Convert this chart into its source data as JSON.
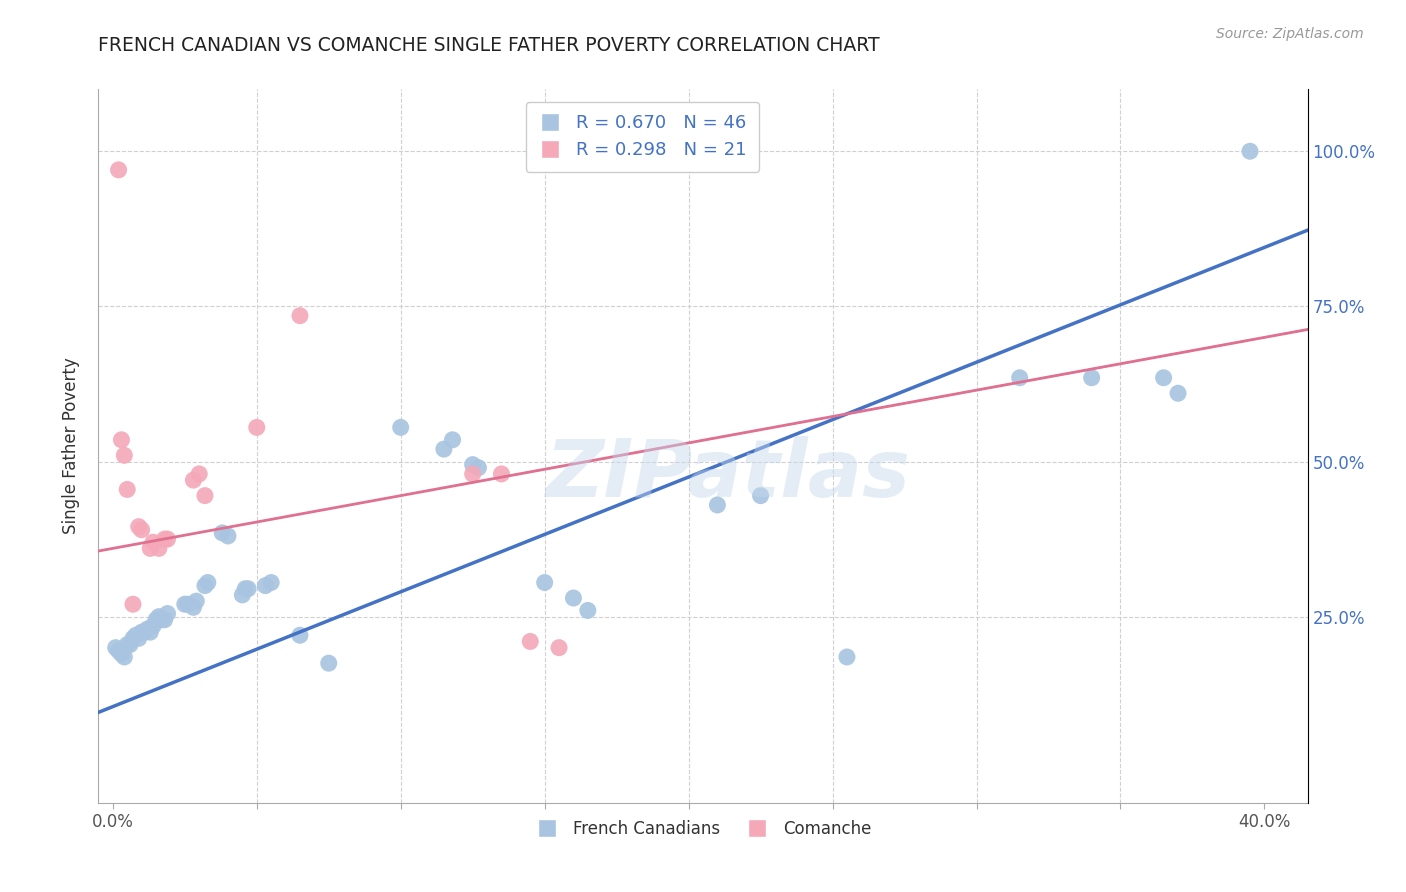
{
  "title": "FRENCH CANADIAN VS COMANCHE SINGLE FATHER POVERTY CORRELATION CHART",
  "source": "Source: ZipAtlas.com",
  "ylabel": "Single Father Poverty",
  "legend_label_blue": "French Canadians",
  "legend_label_pink": "Comanche",
  "watermark": "ZIPatlas",
  "blue_color": "#a8c4e0",
  "pink_color": "#f4a8b8",
  "blue_line_color": "#4472c4",
  "pink_line_color": "#e07090",
  "pink_dash_color": "#e8a0b0",
  "blue_scatter": [
    [
      0.001,
      0.2
    ],
    [
      0.002,
      0.195
    ],
    [
      0.003,
      0.19
    ],
    [
      0.004,
      0.185
    ],
    [
      0.005,
      0.205
    ],
    [
      0.006,
      0.205
    ],
    [
      0.007,
      0.215
    ],
    [
      0.008,
      0.22
    ],
    [
      0.009,
      0.215
    ],
    [
      0.01,
      0.225
    ],
    [
      0.011,
      0.225
    ],
    [
      0.012,
      0.23
    ],
    [
      0.013,
      0.225
    ],
    [
      0.014,
      0.235
    ],
    [
      0.015,
      0.245
    ],
    [
      0.016,
      0.25
    ],
    [
      0.017,
      0.245
    ],
    [
      0.018,
      0.245
    ],
    [
      0.019,
      0.255
    ],
    [
      0.025,
      0.27
    ],
    [
      0.026,
      0.27
    ],
    [
      0.028,
      0.265
    ],
    [
      0.029,
      0.275
    ],
    [
      0.032,
      0.3
    ],
    [
      0.033,
      0.305
    ],
    [
      0.038,
      0.385
    ],
    [
      0.04,
      0.38
    ],
    [
      0.045,
      0.285
    ],
    [
      0.046,
      0.295
    ],
    [
      0.047,
      0.295
    ],
    [
      0.053,
      0.3
    ],
    [
      0.055,
      0.305
    ],
    [
      0.065,
      0.22
    ],
    [
      0.075,
      0.175
    ],
    [
      0.1,
      0.555
    ],
    [
      0.115,
      0.52
    ],
    [
      0.118,
      0.535
    ],
    [
      0.125,
      0.495
    ],
    [
      0.127,
      0.49
    ],
    [
      0.15,
      0.305
    ],
    [
      0.16,
      0.28
    ],
    [
      0.165,
      0.26
    ],
    [
      0.21,
      0.43
    ],
    [
      0.225,
      0.445
    ],
    [
      0.255,
      0.185
    ],
    [
      0.315,
      0.635
    ],
    [
      0.34,
      0.635
    ],
    [
      0.365,
      0.635
    ],
    [
      0.37,
      0.61
    ],
    [
      0.395,
      1.0
    ]
  ],
  "pink_scatter": [
    [
      0.002,
      0.97
    ],
    [
      0.003,
      0.535
    ],
    [
      0.004,
      0.51
    ],
    [
      0.005,
      0.455
    ],
    [
      0.007,
      0.27
    ],
    [
      0.009,
      0.395
    ],
    [
      0.01,
      0.39
    ],
    [
      0.013,
      0.36
    ],
    [
      0.014,
      0.37
    ],
    [
      0.016,
      0.36
    ],
    [
      0.018,
      0.375
    ],
    [
      0.019,
      0.375
    ],
    [
      0.028,
      0.47
    ],
    [
      0.03,
      0.48
    ],
    [
      0.032,
      0.445
    ],
    [
      0.05,
      0.555
    ],
    [
      0.065,
      0.735
    ],
    [
      0.125,
      0.48
    ],
    [
      0.135,
      0.48
    ],
    [
      0.145,
      0.21
    ],
    [
      0.155,
      0.2
    ]
  ],
  "xlim": [
    -0.005,
    0.415
  ],
  "ylim": [
    -0.05,
    1.1
  ],
  "blue_line_slope": 1.85,
  "blue_line_intercept": 0.105,
  "pink_line_slope": 0.85,
  "pink_line_intercept": 0.36,
  "figsize": [
    14.06,
    8.92
  ],
  "dpi": 100
}
